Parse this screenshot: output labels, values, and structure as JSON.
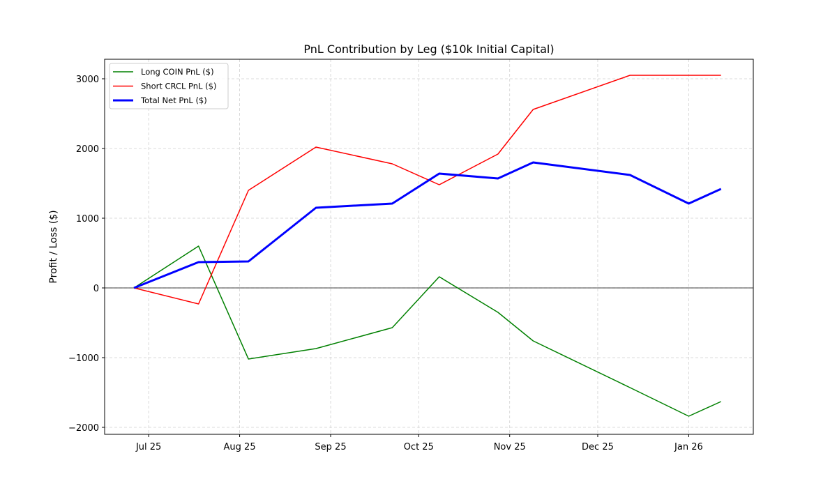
{
  "chart_data": {
    "type": "line",
    "title": "PnL Contribution by Leg ($10k Initial Capital)",
    "xlabel": "",
    "ylabel": "Profit / Loss ($)",
    "xlim": [
      "2025-06-16",
      "2026-01-23"
    ],
    "ylim": [
      -2100,
      3280
    ],
    "grid": true,
    "legend_position": "top-left",
    "x": [
      "2025-06-26",
      "2025-07-18",
      "2025-08-04",
      "2025-08-27",
      "2025-09-22",
      "2025-10-08",
      "2025-10-28",
      "2025-11-09",
      "2025-12-12",
      "2026-01-01",
      "2026-01-12"
    ],
    "xticks": [
      {
        "date": "2025-07-01",
        "label": "Jul 25"
      },
      {
        "date": "2025-08-01",
        "label": "Aug 25"
      },
      {
        "date": "2025-09-01",
        "label": "Sep 25"
      },
      {
        "date": "2025-10-01",
        "label": "Oct 25"
      },
      {
        "date": "2025-11-01",
        "label": "Nov 25"
      },
      {
        "date": "2025-12-01",
        "label": "Dec 25"
      },
      {
        "date": "2026-01-01",
        "label": "Jan 26"
      }
    ],
    "yticks": [
      {
        "value": -2000,
        "label": "−2000"
      },
      {
        "value": -1000,
        "label": "−1000"
      },
      {
        "value": 0,
        "label": "0"
      },
      {
        "value": 1000,
        "label": "1000"
      },
      {
        "value": 2000,
        "label": "2000"
      },
      {
        "value": 3000,
        "label": "3000"
      }
    ],
    "series": [
      {
        "name": "Long COIN PnL ($)",
        "color": "#008000",
        "width": 1.5,
        "values": [
          0,
          600,
          -1020,
          -870,
          -570,
          160,
          -350,
          -760,
          -1430,
          -1840,
          -1630
        ]
      },
      {
        "name": "Short CRCL PnL ($)",
        "color": "#ff0000",
        "width": 1.5,
        "values": [
          0,
          -230,
          1400,
          2020,
          1780,
          1480,
          1920,
          2560,
          3050,
          3050,
          3050
        ]
      },
      {
        "name": "Total Net PnL ($)",
        "color": "#0000ff",
        "width": 3,
        "values": [
          0,
          370,
          380,
          1150,
          1210,
          1640,
          1570,
          1800,
          1620,
          1210,
          1420
        ]
      }
    ]
  }
}
